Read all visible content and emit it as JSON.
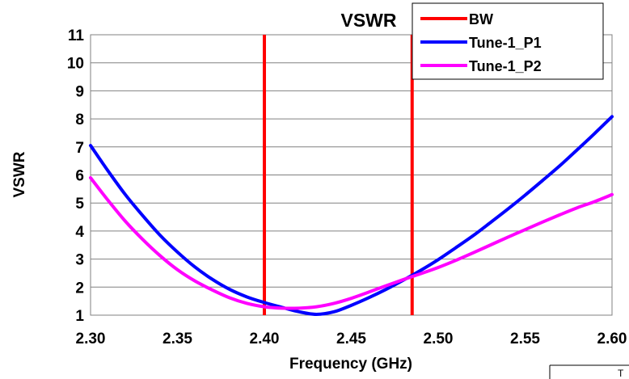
{
  "chart_data": {
    "type": "line",
    "title": "VSWR",
    "xlabel": "Frequency (GHz)",
    "ylabel": "VSWR",
    "xlim": [
      2.3,
      2.6
    ],
    "ylim": [
      1,
      11
    ],
    "x_ticks": [
      "2.30",
      "2.35",
      "2.40",
      "2.45",
      "2.50",
      "2.55",
      "2.60"
    ],
    "y_ticks": [
      "1",
      "2",
      "3",
      "4",
      "5",
      "6",
      "7",
      "8",
      "9",
      "10",
      "11"
    ],
    "grid": "horizontal",
    "legend_position": "top-right",
    "bw_markers": [
      2.4,
      2.485
    ],
    "series": [
      {
        "name": "BW",
        "color": "#ff0000",
        "kind": "vertical-markers"
      },
      {
        "name": "Tune-1_P1",
        "color": "#0000ff",
        "x": [
          2.3,
          2.31,
          2.32,
          2.33,
          2.34,
          2.35,
          2.36,
          2.37,
          2.38,
          2.39,
          2.4,
          2.41,
          2.42,
          2.43,
          2.44,
          2.45,
          2.46,
          2.47,
          2.48,
          2.49,
          2.5,
          2.51,
          2.52,
          2.53,
          2.54,
          2.55,
          2.56,
          2.57,
          2.58,
          2.59,
          2.6
        ],
        "y": [
          7.05,
          6.15,
          5.3,
          4.55,
          3.85,
          3.25,
          2.72,
          2.28,
          1.92,
          1.65,
          1.45,
          1.28,
          1.12,
          1.03,
          1.12,
          1.35,
          1.62,
          1.92,
          2.25,
          2.6,
          2.98,
          3.4,
          3.83,
          4.3,
          4.78,
          5.28,
          5.8,
          6.33,
          6.9,
          7.48,
          8.08
        ]
      },
      {
        "name": "Tune-1_P2",
        "color": "#ff00ff",
        "x": [
          2.3,
          2.31,
          2.32,
          2.33,
          2.34,
          2.35,
          2.36,
          2.37,
          2.38,
          2.39,
          2.4,
          2.41,
          2.42,
          2.43,
          2.44,
          2.45,
          2.46,
          2.47,
          2.48,
          2.49,
          2.5,
          2.51,
          2.52,
          2.53,
          2.54,
          2.55,
          2.56,
          2.57,
          2.58,
          2.59,
          2.6
        ],
        "y": [
          5.9,
          5.1,
          4.35,
          3.7,
          3.12,
          2.62,
          2.22,
          1.9,
          1.62,
          1.42,
          1.3,
          1.25,
          1.25,
          1.3,
          1.42,
          1.6,
          1.82,
          2.05,
          2.27,
          2.48,
          2.7,
          2.95,
          3.22,
          3.5,
          3.78,
          4.05,
          4.32,
          4.58,
          4.83,
          5.05,
          5.3
        ]
      }
    ]
  },
  "corner_label": "T"
}
